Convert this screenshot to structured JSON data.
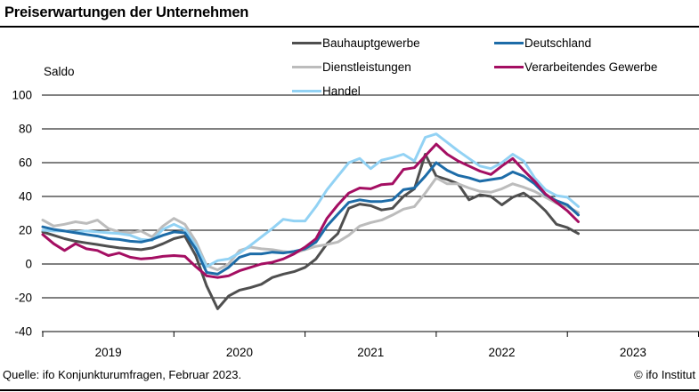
{
  "title": "Preiserwartungen der Unternehmen",
  "y_axis_label": "Saldo",
  "footer": {
    "source": "Quelle: ifo Konjunkturumfragen, Februar 2023.",
    "copyright": "© ifo Institut"
  },
  "chart_data": {
    "type": "line",
    "title": "Preiserwartungen der Unternehmen",
    "ylabel": "Saldo",
    "ylim": [
      -40,
      100
    ],
    "y_ticks": [
      "100",
      "80",
      "60",
      "40",
      "20",
      "0",
      "-20",
      "-40"
    ],
    "grid": true,
    "legend_position": "top",
    "x_unit": "month",
    "x_start": "2019-01",
    "x_end": "2023-02",
    "x_axis_ticks": [
      "2019",
      "2020",
      "2021",
      "2022",
      "2023"
    ],
    "series": [
      {
        "name": "Bauhauptgewerbe",
        "color": "#4f4f4f",
        "values": [
          19,
          17,
          15,
          13.5,
          12.5,
          11.5,
          10.5,
          9.5,
          9,
          8.5,
          9.5,
          12,
          15,
          16.5,
          5,
          -13,
          -26.5,
          -19,
          -15.5,
          -14,
          -12,
          -8,
          -6,
          -4.5,
          -2,
          3,
          12,
          18,
          33,
          35.5,
          34.5,
          32,
          33,
          40,
          44.5,
          65,
          52,
          50,
          47.5,
          38,
          41,
          40,
          35,
          39.5,
          42,
          37.5,
          31.5,
          23.5,
          21.5,
          18
        ]
      },
      {
        "name": "Dienstleistungen",
        "color": "#bcbcbc",
        "values": [
          26,
          22.5,
          23.5,
          25,
          24,
          26,
          21,
          19,
          18.5,
          19.5,
          16,
          22.5,
          27,
          23.5,
          13.5,
          -1,
          -3.5,
          0,
          8,
          10,
          9,
          8.5,
          7.5,
          6.5,
          8.5,
          10.5,
          11.5,
          13,
          17,
          22.5,
          24.5,
          26,
          29,
          32.5,
          34,
          42,
          51,
          47.5,
          47.5,
          45,
          43,
          42.5,
          44.5,
          47.5,
          45.5,
          43,
          39.5,
          36,
          34,
          30.5
        ]
      },
      {
        "name": "Handel",
        "color": "#92d2f4",
        "values": [
          20,
          19.5,
          19.5,
          19,
          19.5,
          19,
          18.5,
          18,
          17,
          14.5,
          14,
          20.5,
          23.5,
          20.5,
          11,
          -1.5,
          2,
          3,
          6.5,
          11,
          16,
          21,
          26.5,
          25.5,
          25.5,
          34,
          44,
          52,
          60,
          62.5,
          56.5,
          61.5,
          63,
          65,
          61,
          75,
          77,
          72,
          67,
          62.5,
          58,
          56.5,
          60,
          65,
          61,
          51,
          44,
          40.5,
          39.5,
          34
        ]
      },
      {
        "name": "Deutschland",
        "color": "#1d6ca8",
        "values": [
          22,
          20.5,
          19.5,
          18.5,
          17.5,
          16.5,
          15,
          14.5,
          13.5,
          13,
          14.5,
          17,
          19,
          18.5,
          9,
          -5,
          -6,
          -2,
          4,
          6,
          6,
          7,
          6.5,
          7.5,
          9,
          13,
          22.5,
          29.5,
          36.5,
          38,
          37,
          37,
          38,
          44,
          45,
          52,
          60,
          55.5,
          52.5,
          51,
          49,
          50,
          51,
          54.5,
          52,
          47.5,
          41,
          37.5,
          35,
          29
        ]
      },
      {
        "name": "Verarbeitendes Gewerbe",
        "color": "#a40e62",
        "values": [
          17.5,
          12,
          8,
          12,
          9,
          8,
          5,
          6.5,
          4,
          3,
          3.5,
          4.5,
          5,
          4.5,
          -1.5,
          -7,
          -8,
          -7,
          -4,
          -2,
          0,
          1,
          3,
          6,
          10,
          15,
          27,
          35,
          42,
          45,
          44.5,
          47,
          47.5,
          56,
          57,
          64,
          71,
          65,
          61,
          58,
          55,
          53,
          58,
          62.5,
          55.5,
          49,
          41.5,
          36.5,
          31.5,
          25
        ]
      }
    ]
  }
}
